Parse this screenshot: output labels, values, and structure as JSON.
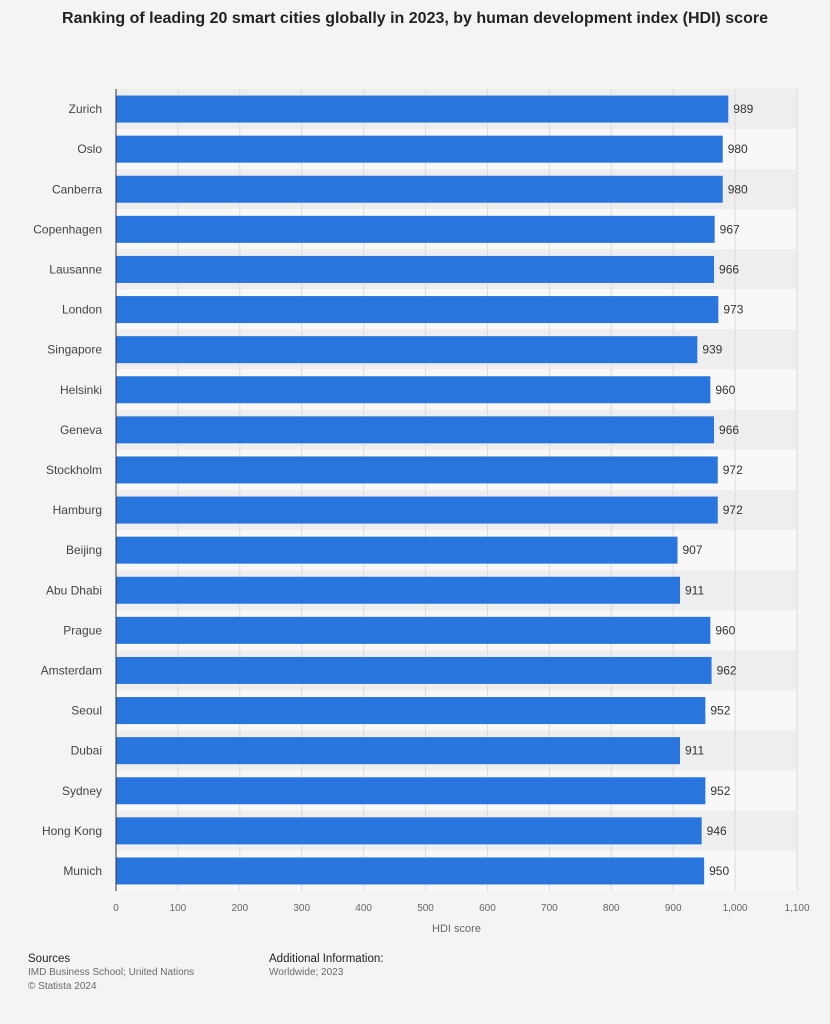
{
  "chart_data": {
    "type": "bar",
    "orientation": "horizontal",
    "title": "Ranking of leading 20 smart cities globally in 2023, by human development index (HDI) score",
    "categories": [
      "Zurich",
      "Oslo",
      "Canberra",
      "Copenhagen",
      "Lausanne",
      "London",
      "Singapore",
      "Helsinki",
      "Geneva",
      "Stockholm",
      "Hamburg",
      "Beijing",
      "Abu Dhabi",
      "Prague",
      "Amsterdam",
      "Seoul",
      "Dubai",
      "Sydney",
      "Hong Kong",
      "Munich"
    ],
    "values": [
      989,
      980,
      980,
      967,
      966,
      973,
      939,
      960,
      966,
      972,
      972,
      907,
      911,
      960,
      962,
      952,
      911,
      952,
      946,
      950
    ],
    "xlabel": "HDI score",
    "ylabel": "",
    "xlim": [
      0,
      1100
    ],
    "ticks": [
      0,
      100,
      200,
      300,
      400,
      500,
      600,
      700,
      800,
      900,
      1000,
      1100
    ],
    "tick_labels": [
      "0",
      "100",
      "200",
      "300",
      "400",
      "500",
      "600",
      "700",
      "800",
      "900",
      "1,000",
      "1,100"
    ],
    "bar_color": "#2876dd",
    "grid": true,
    "data_labels": true
  },
  "footer": {
    "sources_heading": "Sources",
    "sources_text": "IMD Business School; United Nations",
    "copyright": "© Statista 2024",
    "info_heading": "Additional Information:",
    "info_text": "Worldwide; 2023"
  }
}
